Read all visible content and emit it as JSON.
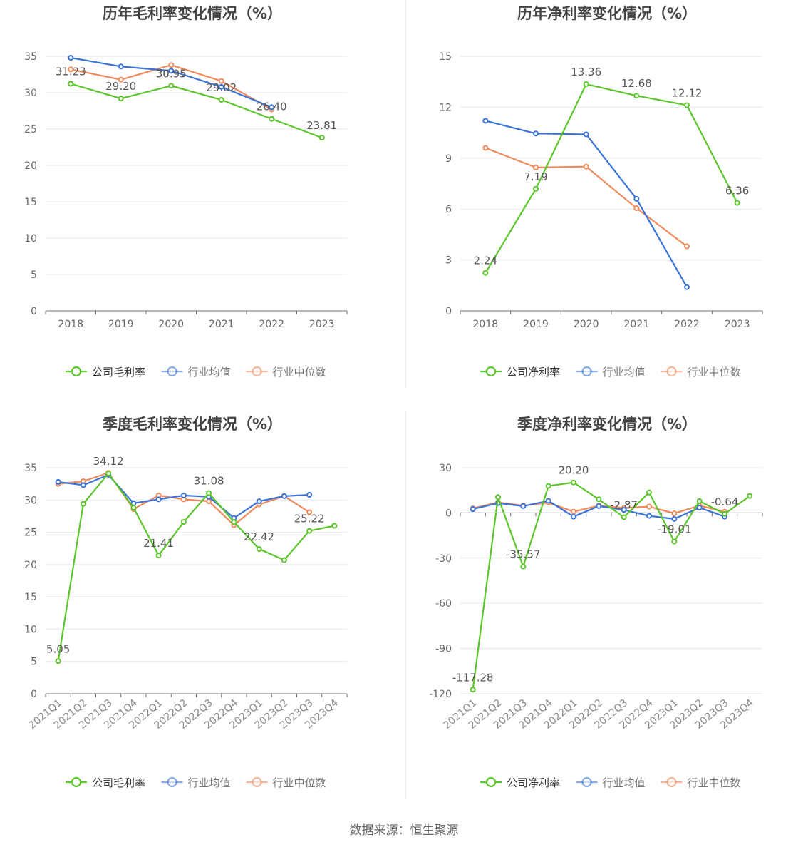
{
  "source": "数据来源：恒生聚源",
  "colors": {
    "company": "#5cc52b",
    "avg": "#3b74d6",
    "median": "#f08a5d",
    "axis": "#666666",
    "grid": "#e3e7f1",
    "text": "#555555",
    "title": "#444444"
  },
  "chart_data": [
    {
      "type": "line",
      "title": "历年毛利率变化情况（%）",
      "categories": [
        "2018",
        "2019",
        "2020",
        "2021",
        "2022",
        "2023"
      ],
      "ylim": [
        0,
        35
      ],
      "yticks": [
        0,
        5,
        10,
        15,
        20,
        25,
        30,
        35
      ],
      "grid": true,
      "legend_position": "bottom",
      "series": [
        {
          "name": "公司毛利率",
          "values": [
            31.23,
            29.2,
            30.95,
            29.02,
            26.4,
            23.81
          ],
          "labels": [
            "31.23",
            "29.20",
            "30.95",
            "29.02",
            "26.40",
            "23.81"
          ]
        },
        {
          "name": "行业均值",
          "values": [
            34.8,
            33.6,
            33.0,
            30.8,
            28.0,
            null
          ]
        },
        {
          "name": "行业中位数",
          "values": [
            33.2,
            31.8,
            33.8,
            31.6,
            27.7,
            null
          ]
        }
      ]
    },
    {
      "type": "line",
      "title": "历年净利率变化情况（%）",
      "categories": [
        "2018",
        "2019",
        "2020",
        "2021",
        "2022",
        "2023"
      ],
      "ylim": [
        0,
        15
      ],
      "yticks": [
        0,
        3,
        6,
        9,
        12,
        15
      ],
      "grid": true,
      "legend_position": "bottom",
      "series": [
        {
          "name": "公司净利率",
          "values": [
            2.24,
            7.19,
            13.36,
            12.68,
            12.12,
            6.36
          ],
          "labels": [
            "2.24",
            "7.19",
            "13.36",
            "12.68",
            "12.12",
            "6.36"
          ]
        },
        {
          "name": "行业均值",
          "values": [
            11.2,
            10.45,
            10.4,
            6.6,
            1.4,
            null
          ]
        },
        {
          "name": "行业中位数",
          "values": [
            9.6,
            8.45,
            8.5,
            6.05,
            3.8,
            null
          ]
        }
      ]
    },
    {
      "type": "line",
      "title": "季度毛利率变化情况（%）",
      "categories": [
        "2021Q1",
        "2021Q2",
        "2021Q3",
        "2021Q4",
        "2022Q1",
        "2022Q2",
        "2022Q3",
        "2022Q4",
        "2023Q1",
        "2023Q2",
        "2023Q3",
        "2023Q4"
      ],
      "ylim": [
        0,
        35
      ],
      "yticks": [
        0,
        5,
        10,
        15,
        20,
        25,
        30,
        35
      ],
      "grid": true,
      "legend_position": "bottom",
      "series": [
        {
          "name": "公司毛利率",
          "values": [
            5.05,
            29.4,
            34.12,
            28.8,
            21.41,
            26.6,
            31.08,
            26.6,
            22.42,
            20.7,
            25.22,
            26.0
          ],
          "labels": [
            "5.05",
            "",
            "34.12",
            "",
            "21.41",
            "",
            "31.08",
            "",
            "22.42",
            "",
            "25.22",
            ""
          ]
        },
        {
          "name": "行业均值",
          "values": [
            32.8,
            32.3,
            33.9,
            29.5,
            30.1,
            30.7,
            30.5,
            27.2,
            29.8,
            30.6,
            30.8,
            null
          ]
        },
        {
          "name": "行业中位数",
          "values": [
            32.5,
            32.9,
            34.2,
            28.6,
            30.7,
            30.1,
            29.8,
            26.1,
            29.3,
            30.6,
            28.1,
            null
          ]
        }
      ]
    },
    {
      "type": "line",
      "title": "季度净利率变化情况（%）",
      "categories": [
        "2021Q1",
        "2021Q2",
        "2021Q3",
        "2021Q4",
        "2022Q1",
        "2022Q2",
        "2022Q3",
        "2022Q4",
        "2023Q1",
        "2023Q2",
        "2023Q3",
        "2023Q4"
      ],
      "ylim": [
        -120,
        30
      ],
      "yticks": [
        -120,
        -90,
        -60,
        -30,
        0,
        30
      ],
      "grid": true,
      "legend_position": "bottom",
      "series": [
        {
          "name": "公司净利率",
          "values": [
            -117.28,
            10.5,
            -35.57,
            17.9,
            20.2,
            9.0,
            -2.87,
            13.6,
            -19.01,
            7.8,
            -0.64,
            11.2
          ],
          "labels": [
            "-117.28",
            "",
            "-35.57",
            "",
            "20.20",
            "",
            "-2.87",
            "",
            "-19.01",
            "",
            "-0.64",
            ""
          ]
        },
        {
          "name": "行业均值",
          "values": [
            2.5,
            6.5,
            4.5,
            8.0,
            -2.5,
            4.5,
            2.0,
            -2.0,
            -4.0,
            3.5,
            -2.5,
            null
          ]
        },
        {
          "name": "行业中位数",
          "values": [
            3.0,
            7.0,
            4.8,
            6.8,
            0.8,
            4.8,
            3.2,
            4.2,
            -0.3,
            4.8,
            0.8,
            null
          ]
        }
      ]
    }
  ]
}
